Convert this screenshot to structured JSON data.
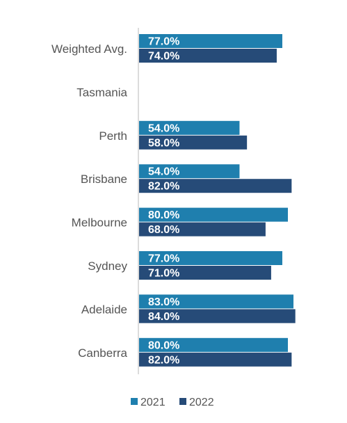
{
  "chart_data": {
    "type": "bar",
    "orientation": "horizontal",
    "categories": [
      "Weighted Avg.",
      "Tasmania",
      "Perth",
      "Brisbane",
      "Melbourne",
      "Sydney",
      "Adelaide",
      "Canberra"
    ],
    "series": [
      {
        "name": "2021",
        "color": "#1f7fae",
        "values": [
          77.0,
          null,
          54.0,
          54.0,
          80.0,
          77.0,
          83.0,
          80.0
        ],
        "labels": [
          "77.0%",
          "",
          "54.0%",
          "54.0%",
          "80.0%",
          "77.0%",
          "83.0%",
          "80.0%"
        ]
      },
      {
        "name": "2022",
        "color": "#264b78",
        "values": [
          74.0,
          null,
          58.0,
          82.0,
          68.0,
          71.0,
          84.0,
          82.0
        ],
        "labels": [
          "74.0%",
          "",
          "58.0%",
          "82.0%",
          "68.0%",
          "71.0%",
          "84.0%",
          "82.0%"
        ]
      }
    ],
    "xlim": [
      0,
      100
    ],
    "grid": false,
    "legend_position": "bottom",
    "axis_color": "#d0d0d0"
  }
}
